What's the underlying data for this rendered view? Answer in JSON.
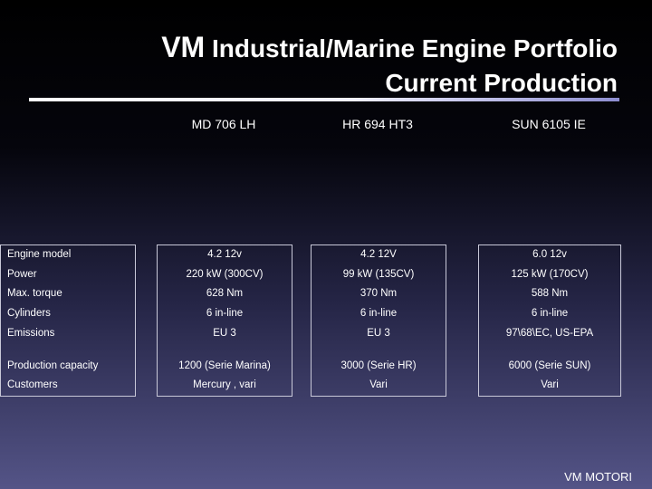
{
  "title": {
    "brand": "VM",
    "line1": "Industrial/Marine Engine Portfolio",
    "line2": "Current Production"
  },
  "columns": [
    "MD 706 LH",
    "HR 694 HT3",
    "SUN 6105 IE"
  ],
  "rows": [
    {
      "label": "Engine model",
      "values": [
        "4.2 12v",
        "4.2 12V",
        "6.0 12v"
      ]
    },
    {
      "label": "Power",
      "values": [
        "220 kW (300CV)",
        "99 kW (135CV)",
        "125 kW (170CV)"
      ]
    },
    {
      "label": "Max. torque",
      "values": [
        "628 Nm",
        "370 Nm",
        "588 Nm"
      ]
    },
    {
      "label": "Cylinders",
      "values": [
        "6 in-line",
        "6 in-line",
        "6 in-line"
      ]
    },
    {
      "label": "Emissions",
      "values": [
        "EU 3",
        "EU 3",
        "97\\68\\EC, US-EPA"
      ]
    },
    {
      "label": "Production capacity",
      "values": [
        "1200 (Serie Marina)",
        "3000 (Serie HR)",
        "6000 (Serie SUN)"
      ]
    },
    {
      "label": "Customers",
      "values": [
        "Mercury , vari",
        "Vari",
        "Vari"
      ]
    }
  ],
  "footer": "VM MOTORI"
}
